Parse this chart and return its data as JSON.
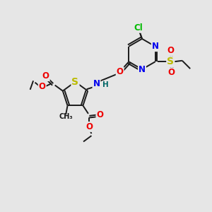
{
  "background_color": "#e6e6e6",
  "fig_width": 3.0,
  "fig_height": 3.0,
  "dpi": 100,
  "colors": {
    "C": "#1a1a1a",
    "N": "#0000ee",
    "O": "#ee0000",
    "S": "#bbbb00",
    "Cl": "#00bb00",
    "H": "#006666",
    "bond": "#1a1a1a"
  },
  "bond_lw": 1.4,
  "font_size": 8.5
}
